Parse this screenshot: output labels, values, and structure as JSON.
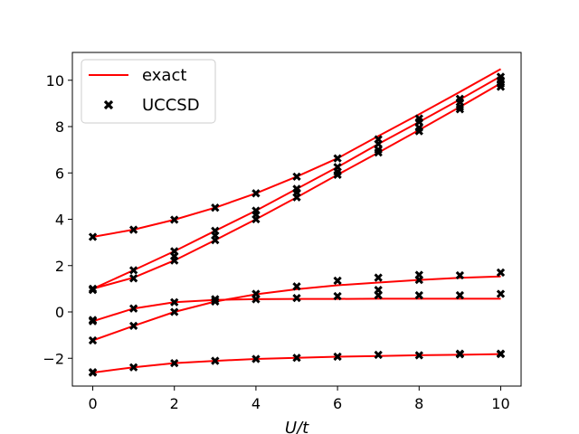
{
  "chart_data": {
    "type": "line",
    "title": "",
    "xlabel": "U/t",
    "ylabel": "",
    "xlim": [
      -0.5,
      10.5
    ],
    "ylim": [
      -3.2,
      11.2
    ],
    "xticks": [
      "0",
      "2",
      "4",
      "6",
      "8",
      "10"
    ],
    "yticks": [
      "−2",
      "0",
      "2",
      "4",
      "6",
      "8",
      "10"
    ],
    "grid": false,
    "legend": {
      "placement": "top-left",
      "entries": [
        {
          "label": "exact",
          "style": "line",
          "color": "#ff0000"
        },
        {
          "label": "UCCSD",
          "style": "x-marker",
          "color": "#000000"
        }
      ]
    },
    "x": [
      0,
      1,
      2,
      3,
      4,
      5,
      6,
      7,
      8,
      9,
      10
    ],
    "series": [
      {
        "group": "exact",
        "values": [
          3.24,
          3.55,
          3.98,
          4.5,
          5.12,
          5.84,
          6.63,
          7.59,
          8.53,
          9.5,
          10.48
        ]
      },
      {
        "group": "exact",
        "values": [
          1.0,
          1.8,
          2.62,
          3.5,
          4.37,
          5.31,
          6.25,
          7.25,
          8.2,
          9.17,
          10.17
        ]
      },
      {
        "group": "exact",
        "values": [
          1.0,
          1.48,
          2.22,
          3.1,
          4.0,
          4.95,
          5.92,
          6.88,
          7.85,
          8.85,
          9.87
        ]
      },
      {
        "group": "exact",
        "values": [
          -0.4,
          0.15,
          0.42,
          0.52,
          0.55,
          0.56,
          0.56,
          0.57,
          0.57,
          0.57,
          0.57
        ]
      },
      {
        "group": "exact",
        "values": [
          -1.23,
          -0.6,
          0.0,
          0.45,
          0.76,
          0.98,
          1.15,
          1.27,
          1.38,
          1.47,
          1.53
        ]
      },
      {
        "group": "exact",
        "values": [
          -2.62,
          -2.39,
          -2.21,
          -2.11,
          -2.03,
          -1.98,
          -1.93,
          -1.9,
          -1.87,
          -1.85,
          -1.82
        ]
      }
    ],
    "markers": [
      {
        "group": "UCCSD",
        "x": [
          0,
          0,
          0,
          0,
          0,
          0,
          0,
          0
        ],
        "y": [
          3.24,
          1.0,
          0.95,
          -0.4,
          -0.35,
          -1.23,
          -2.62,
          -2.6
        ]
      },
      {
        "group": "UCCSD",
        "x": [
          1,
          1,
          1,
          1,
          1,
          1
        ],
        "y": [
          3.55,
          1.8,
          1.45,
          0.15,
          -0.6,
          -2.39
        ]
      },
      {
        "group": "UCCSD",
        "x": [
          2,
          2,
          2,
          2,
          2,
          2,
          2
        ],
        "y": [
          3.98,
          2.62,
          2.4,
          2.22,
          0.42,
          0.0,
          -2.21
        ]
      },
      {
        "group": "UCCSD",
        "x": [
          3,
          3,
          3,
          3,
          3,
          3,
          3
        ],
        "y": [
          4.5,
          3.5,
          3.3,
          3.1,
          0.55,
          0.45,
          -2.11
        ]
      },
      {
        "group": "UCCSD",
        "x": [
          4,
          4,
          4,
          4,
          4,
          4,
          4
        ],
        "y": [
          5.12,
          4.37,
          4.2,
          4.0,
          0.78,
          0.55,
          -2.03
        ]
      },
      {
        "group": "UCCSD",
        "x": [
          5,
          5,
          5,
          5,
          5,
          5,
          5
        ],
        "y": [
          5.84,
          5.31,
          5.15,
          4.95,
          1.1,
          0.6,
          -1.98
        ]
      },
      {
        "group": "UCCSD",
        "x": [
          6,
          6,
          6,
          6,
          6,
          6,
          6
        ],
        "y": [
          6.63,
          6.25,
          6.05,
          5.92,
          1.35,
          0.68,
          -1.93
        ]
      },
      {
        "group": "UCCSD",
        "x": [
          7,
          7,
          7,
          7,
          7,
          7,
          7,
          7
        ],
        "y": [
          7.45,
          7.25,
          7.0,
          6.88,
          1.48,
          0.95,
          0.72,
          -1.85
        ]
      },
      {
        "group": "UCCSD",
        "x": [
          8,
          8,
          8,
          8,
          8,
          8,
          8,
          8
        ],
        "y": [
          8.35,
          8.2,
          7.95,
          7.8,
          1.6,
          1.38,
          0.72,
          -1.87
        ]
      },
      {
        "group": "UCCSD",
        "x": [
          9,
          9,
          9,
          9,
          9,
          9,
          9,
          9
        ],
        "y": [
          9.2,
          9.05,
          8.85,
          8.75,
          1.58,
          0.72,
          -1.8,
          -1.83
        ]
      },
      {
        "group": "UCCSD",
        "x": [
          10,
          10,
          10,
          10,
          10,
          10,
          10,
          10
        ],
        "y": [
          10.15,
          10.0,
          9.85,
          9.72,
          1.7,
          0.78,
          -1.8,
          -1.82
        ]
      }
    ]
  }
}
